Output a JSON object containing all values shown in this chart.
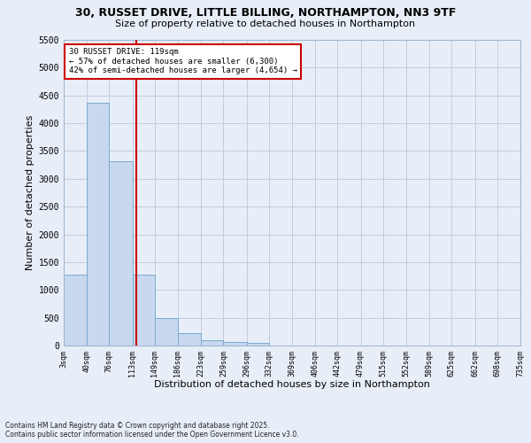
{
  "title_line1": "30, RUSSET DRIVE, LITTLE BILLING, NORTHAMPTON, NN3 9TF",
  "title_line2": "Size of property relative to detached houses in Northampton",
  "xlabel": "Distribution of detached houses by size in Northampton",
  "ylabel": "Number of detached properties",
  "bar_color": "#c8d8ee",
  "bar_edge_color": "#7aaad0",
  "grid_color": "#c0cce0",
  "background_color": "#e8eef8",
  "fig_background_color": "#e8eef8",
  "annotation_line_color": "#cc0000",
  "annotation_box_color": "#cc0000",
  "property_line_x": 119,
  "annotation_text_line1": "30 RUSSET DRIVE: 119sqm",
  "annotation_text_line2": "← 57% of detached houses are smaller (6,300)",
  "annotation_text_line3": "42% of semi-detached houses are larger (4,654) →",
  "footnote_line1": "Contains HM Land Registry data © Crown copyright and database right 2025.",
  "footnote_line2": "Contains public sector information licensed under the Open Government Licence v3.0.",
  "bin_edges": [
    3,
    40,
    76,
    113,
    149,
    186,
    223,
    259,
    296,
    332,
    369,
    406,
    442,
    479,
    515,
    552,
    589,
    625,
    662,
    698,
    735
  ],
  "bar_values": [
    1270,
    4370,
    3310,
    1280,
    500,
    220,
    90,
    60,
    50,
    0,
    0,
    0,
    0,
    0,
    0,
    0,
    0,
    0,
    0,
    0
  ],
  "ylim": [
    0,
    5500
  ],
  "yticks": [
    0,
    500,
    1000,
    1500,
    2000,
    2500,
    3000,
    3500,
    4000,
    4500,
    5000,
    5500
  ]
}
